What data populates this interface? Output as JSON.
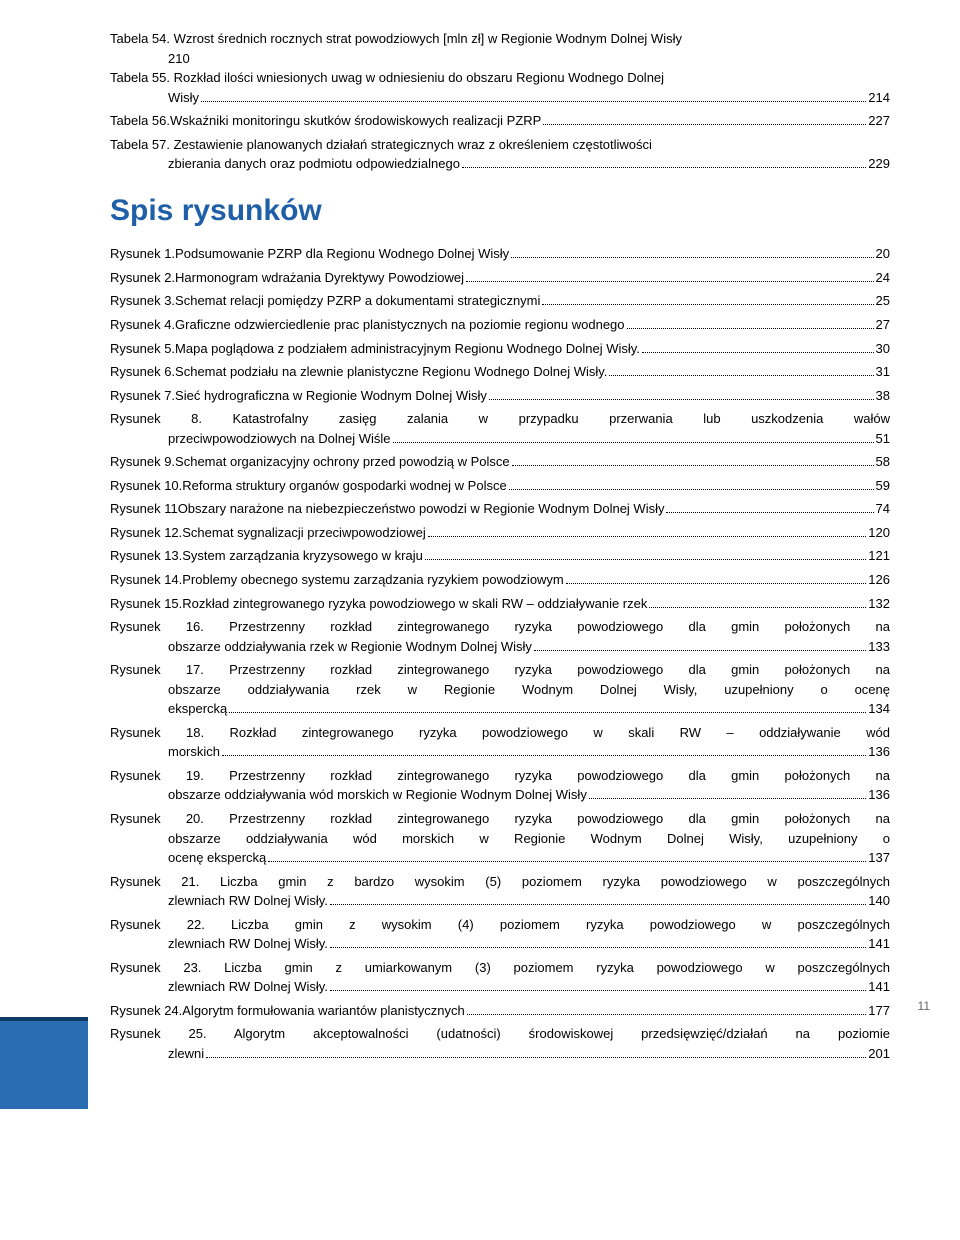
{
  "tables": [
    {
      "label": "Tabela 54.",
      "title_line1": "Wzrost średnich rocznych strat powodziowych [mln zł] w Regionie Wodnym Dolnej Wisły",
      "title_line2": "",
      "page": "210",
      "wrap_indent": false,
      "pre_leader": false,
      "page_on_line2": true
    },
    {
      "label": "Tabela 55.",
      "title_line1": "Rozkład ilości wniesionych uwag w odniesieniu do obszaru Regionu Wodnego Dolnej",
      "title_line2": "Wisły",
      "page": "214",
      "wrap_indent": true
    },
    {
      "label": "Tabela 56.",
      "title_line1": "Wskaźniki monitoringu skutków środowiskowych realizacji PZRP",
      "title_line2": "",
      "page": "227",
      "wrap_indent": false
    },
    {
      "label": "Tabela 57.",
      "title_line1": "Zestawienie planowanych działań strategicznych wraz z określeniem częstotliwości",
      "title_line2": "zbierania danych oraz podmiotu odpowiedzialnego",
      "page": "229",
      "wrap_indent": true
    }
  ],
  "section_heading": "Spis rysunków",
  "figures": [
    {
      "label": "Rysunek 1.",
      "title": "Podsumowanie PZRP dla Regionu Wodnego Dolnej Wisły",
      "page": "20"
    },
    {
      "label": "Rysunek 2.",
      "title": "Harmonogram wdrażania Dyrektywy Powodziowej",
      "page": "24"
    },
    {
      "label": "Rysunek 3.",
      "title": "Schemat relacji pomiędzy PZRP a dokumentami strategicznymi",
      "page": "25"
    },
    {
      "label": "Rysunek 4.",
      "title": "Graficzne odzwierciedlenie prac planistycznych na poziomie regionu wodnego",
      "page": "27"
    },
    {
      "label": "Rysunek 5.",
      "title": "Mapa poglądowa z podziałem administracyjnym Regionu Wodnego Dolnej Wisły.",
      "page": "30"
    },
    {
      "label": "Rysunek 6.",
      "title": "Schemat podziału na zlewnie planistyczne Regionu Wodnego Dolnej Wisły.",
      "page": "31"
    },
    {
      "label": "Rysunek 7.",
      "title": "Sieć hydrograficzna w Regionie Wodnym Dolnej Wisły",
      "page": "38"
    },
    {
      "label": "Rysunek 8.",
      "title_line1": "Katastrofalny zasięg zalania w przypadku przerwania lub uszkodzenia wałów",
      "title_line2": "przeciwpowodziowych na Dolnej Wiśle",
      "page": "51",
      "justify": true
    },
    {
      "label": "Rysunek 9.",
      "title": "Schemat organizacyjny ochrony przed powodzią w Polsce",
      "page": "58"
    },
    {
      "label": "Rysunek 10.",
      "title": "Reforma struktury organów gospodarki wodnej w Polsce",
      "page": "59"
    },
    {
      "label": "Rysunek 11",
      "title": "Obszary narażone na niebezpieczeństwo powodzi w Regionie Wodnym Dolnej Wisły",
      "page": "74"
    },
    {
      "label": "Rysunek 12.",
      "title": "Schemat sygnalizacji przeciwpowodziowej",
      "page": "120"
    },
    {
      "label": "Rysunek 13.",
      "title": "System zarządzania kryzysowego w kraju",
      "page": "121"
    },
    {
      "label": "Rysunek 14.",
      "title": "Problemy obecnego systemu zarządzania ryzykiem powodziowym",
      "page": "126"
    },
    {
      "label": "Rysunek 15.",
      "title": "Rozkład zintegrowanego ryzyka powodziowego w skali RW – oddziaływanie rzek",
      "page": "132"
    },
    {
      "label": "Rysunek 16.",
      "title_line1": "Przestrzenny rozkład zintegrowanego ryzyka powodziowego dla gmin położonych na",
      "title_line2": "obszarze oddziaływania rzek w Regionie Wodnym Dolnej Wisły",
      "page": "133",
      "justify": true
    },
    {
      "label": "Rysunek 17.",
      "title_line1": "Przestrzenny rozkład zintegrowanego ryzyka powodziowego dla gmin położonych na",
      "title_line2": "obszarze oddziaływania rzek w Regionie Wodnym Dolnej Wisły, uzupełniony o ocenę",
      "title_line3": "ekspercką",
      "page": "134",
      "justify": true
    },
    {
      "label": "Rysunek 18.",
      "title_line1": "Rozkład zintegrowanego ryzyka powodziowego w skali RW – oddziaływanie wód",
      "title_line2": "morskich",
      "page": "136",
      "justify": true
    },
    {
      "label": "Rysunek 19.",
      "title_line1": "Przestrzenny rozkład zintegrowanego ryzyka powodziowego dla gmin położonych na",
      "title_line2": "obszarze oddziaływania wód morskich w Regionie Wodnym Dolnej Wisły",
      "page": "136",
      "justify": true
    },
    {
      "label": "Rysunek 20.",
      "title_line1": "Przestrzenny rozkład zintegrowanego ryzyka powodziowego dla gmin położonych na",
      "title_line2": "obszarze oddziaływania wód morskich w Regionie Wodnym Dolnej Wisły, uzupełniony o",
      "title_line3": "ocenę ekspercką",
      "page": "137",
      "justify": true
    },
    {
      "label": "Rysunek 21.",
      "title_line1": "Liczba gmin z bardzo wysokim (5) poziomem ryzyka powodziowego w poszczególnych",
      "title_line2": "zlewniach RW Dolnej Wisły.",
      "page": "140",
      "justify": true
    },
    {
      "label": "Rysunek 22.",
      "title_line1": "Liczba gmin z wysokim (4) poziomem ryzyka powodziowego w poszczególnych",
      "title_line2": "zlewniach RW Dolnej Wisły.",
      "page": "141",
      "justify": true
    },
    {
      "label": "Rysunek 23.",
      "title_line1": "Liczba gmin z umiarkowanym (3) poziomem ryzyka powodziowego w poszczególnych",
      "title_line2": "zlewniach RW Dolnej Wisły.",
      "page": "141",
      "justify": true
    },
    {
      "label": "Rysunek 24.",
      "title": "Algorytm formułowania wariantów planistycznych",
      "page": "177"
    },
    {
      "label": "Rysunek 25.",
      "title_line1": "Algorytm akceptowalności (udatności) środowiskowej przedsięwzięć/działań na poziomie",
      "title_line2": "zlewni",
      "page": "201",
      "justify": true
    }
  ],
  "page_number": "11",
  "colors": {
    "heading": "#1f5fa8",
    "footer_bar": "#2a6db3",
    "footer_line": "#0f3a63"
  }
}
